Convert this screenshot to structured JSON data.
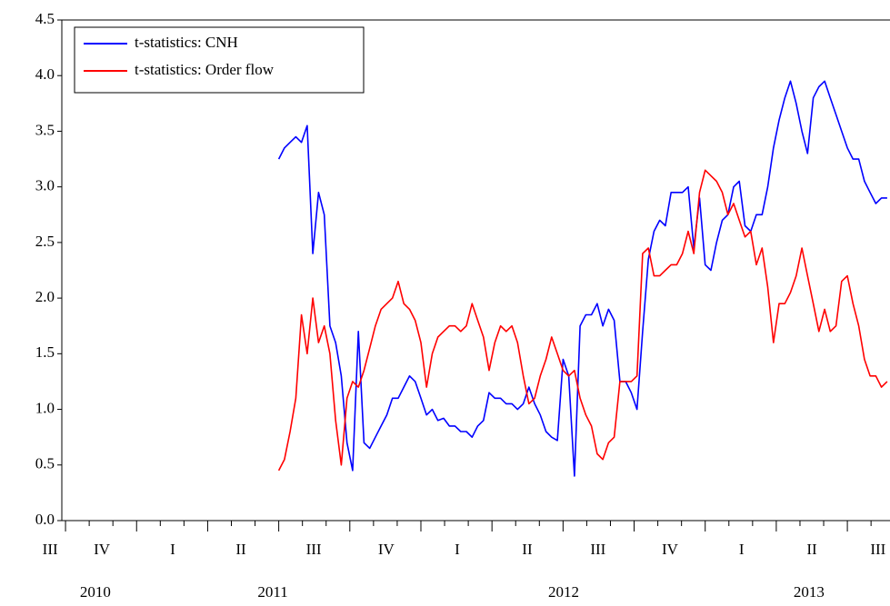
{
  "chart_data": {
    "type": "line",
    "x": [
      2011.5,
      2011.52,
      2011.54,
      2011.56,
      2011.58,
      2011.6,
      2011.62,
      2011.64,
      2011.66,
      2011.68,
      2011.7,
      2011.72,
      2011.74,
      2011.76,
      2011.78,
      2011.8,
      2011.82,
      2011.84,
      2011.86,
      2011.88,
      2011.9,
      2011.92,
      2011.94,
      2011.96,
      2011.98,
      2012.0,
      2012.02,
      2012.04,
      2012.06,
      2012.08,
      2012.1,
      2012.12,
      2012.14,
      2012.16,
      2012.18,
      2012.2,
      2012.22,
      2012.24,
      2012.26,
      2012.28,
      2012.3,
      2012.32,
      2012.34,
      2012.36,
      2012.38,
      2012.4,
      2012.42,
      2012.44,
      2012.46,
      2012.48,
      2012.5,
      2012.52,
      2012.54,
      2012.56,
      2012.58,
      2012.6,
      2012.62,
      2012.64,
      2012.66,
      2012.68,
      2012.7,
      2012.72,
      2012.74,
      2012.76,
      2012.78,
      2012.8,
      2012.82,
      2012.84,
      2012.86,
      2012.88,
      2012.9,
      2012.92,
      2012.94,
      2012.96,
      2012.98,
      2013.0,
      2013.02,
      2013.04,
      2013.06,
      2013.08,
      2013.1,
      2013.12,
      2013.14,
      2013.16,
      2013.18,
      2013.2,
      2013.22,
      2013.24,
      2013.26,
      2013.28,
      2013.3,
      2013.32,
      2013.34,
      2013.36,
      2013.38,
      2013.4,
      2013.42,
      2013.44,
      2013.46,
      2013.48,
      2013.5,
      2013.52,
      2013.54,
      2013.56,
      2013.58,
      2013.6,
      2013.62,
      2013.64
    ],
    "series": [
      {
        "name": "t-statistics: CNH",
        "color": "#0000ff",
        "values": [
          3.25,
          3.35,
          3.4,
          3.45,
          3.4,
          3.55,
          2.4,
          2.95,
          2.75,
          1.75,
          1.6,
          1.3,
          0.7,
          0.45,
          1.7,
          0.7,
          0.65,
          0.75,
          0.85,
          0.95,
          1.1,
          1.1,
          1.2,
          1.3,
          1.25,
          1.1,
          0.95,
          1.0,
          0.9,
          0.92,
          0.85,
          0.85,
          0.8,
          0.8,
          0.75,
          0.85,
          0.9,
          1.15,
          1.1,
          1.1,
          1.05,
          1.05,
          1.0,
          1.05,
          1.2,
          1.05,
          0.95,
          0.8,
          0.75,
          0.72,
          1.45,
          1.3,
          0.4,
          1.75,
          1.85,
          1.85,
          1.95,
          1.75,
          1.9,
          1.8,
          1.25,
          1.25,
          1.15,
          1.0,
          1.7,
          2.35,
          2.6,
          2.7,
          2.65,
          2.95,
          2.95,
          2.95,
          3.0,
          2.45,
          2.9,
          2.3,
          2.25,
          2.5,
          2.7,
          2.75,
          3.0,
          3.05,
          2.65,
          2.6,
          2.75,
          2.75,
          3.0,
          3.35,
          3.6,
          3.8,
          3.95,
          3.75,
          3.5,
          3.3,
          3.8,
          3.9,
          3.95,
          3.8,
          3.65,
          3.5,
          3.35,
          3.25,
          3.25,
          3.05,
          2.95,
          2.85,
          2.9,
          2.9
        ]
      },
      {
        "name": "t-statistics: Order flow",
        "color": "#ff0000",
        "values": [
          0.45,
          0.55,
          0.8,
          1.1,
          1.85,
          1.5,
          2.0,
          1.6,
          1.75,
          1.5,
          0.9,
          0.5,
          1.1,
          1.25,
          1.2,
          1.35,
          1.55,
          1.75,
          1.9,
          1.95,
          2.0,
          2.15,
          1.95,
          1.9,
          1.8,
          1.6,
          1.2,
          1.5,
          1.65,
          1.7,
          1.75,
          1.75,
          1.7,
          1.75,
          1.95,
          1.8,
          1.65,
          1.35,
          1.6,
          1.75,
          1.7,
          1.75,
          1.6,
          1.3,
          1.05,
          1.1,
          1.3,
          1.45,
          1.65,
          1.5,
          1.35,
          1.3,
          1.35,
          1.1,
          0.95,
          0.85,
          0.6,
          0.55,
          0.7,
          0.75,
          1.25,
          1.25,
          1.25,
          1.3,
          2.4,
          2.45,
          2.2,
          2.2,
          2.25,
          2.3,
          2.3,
          2.4,
          2.6,
          2.4,
          2.95,
          3.15,
          3.1,
          3.05,
          2.95,
          2.75,
          2.85,
          2.7,
          2.55,
          2.6,
          2.3,
          2.45,
          2.1,
          1.6,
          1.95,
          1.95,
          2.05,
          2.2,
          2.45,
          2.2,
          1.95,
          1.7,
          1.9,
          1.7,
          1.75,
          2.15,
          2.2,
          1.95,
          1.75,
          1.45,
          1.3,
          1.3,
          1.2,
          1.25
        ]
      }
    ],
    "xlim": [
      2010.737,
      2013.65
    ],
    "xticks": [
      {
        "value": 2010.696,
        "label": "III"
      },
      {
        "value": 2010.878,
        "label": "IV"
      },
      {
        "value": 2011.127,
        "label": "I"
      },
      {
        "value": 2011.367,
        "label": "II"
      },
      {
        "value": 2011.623,
        "label": "III"
      },
      {
        "value": 2011.878,
        "label": "IV"
      },
      {
        "value": 2012.128,
        "label": "I"
      },
      {
        "value": 2012.374,
        "label": "II"
      },
      {
        "value": 2012.623,
        "label": "III"
      },
      {
        "value": 2012.876,
        "label": "IV"
      },
      {
        "value": 2013.128,
        "label": "I"
      },
      {
        "value": 2013.375,
        "label": "II"
      },
      {
        "value": 2013.608,
        "label": "III"
      }
    ],
    "year_labels": [
      {
        "value": 2010.855,
        "label": "2010"
      },
      {
        "value": 2011.479,
        "label": "2011"
      },
      {
        "value": 2012.502,
        "label": "2012"
      },
      {
        "value": 2013.365,
        "label": "2013"
      }
    ],
    "ylim": [
      0,
      4.5
    ],
    "yticks": [
      {
        "value": 0,
        "label": "0.0"
      },
      0.5,
      {
        "value": 1,
        "label": "1.0"
      },
      1.5,
      {
        "value": 2,
        "label": "2.0"
      },
      2.5,
      {
        "value": 3,
        "label": "3.0"
      },
      3.5,
      {
        "value": 4,
        "label": "4.0"
      },
      4.5
    ],
    "legend": "upper left"
  }
}
